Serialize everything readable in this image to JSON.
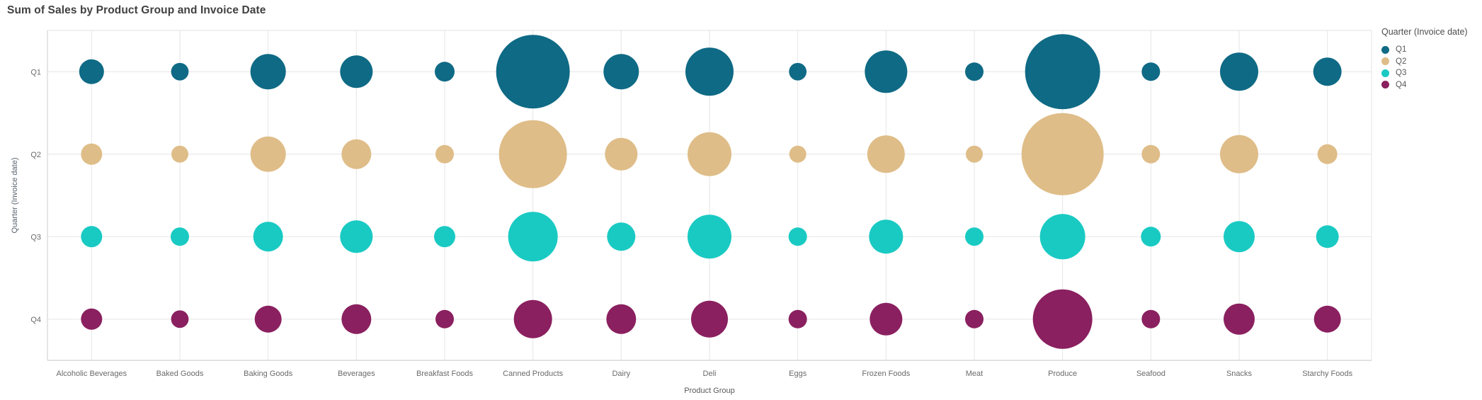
{
  "title": "Sum of Sales by Product Group and Invoice Date",
  "legend": {
    "title": "Quarter (Invoice date)",
    "items": [
      {
        "label": "Q1",
        "color": "#0f6a85"
      },
      {
        "label": "Q2",
        "color": "#dfbd88"
      },
      {
        "label": "Q3",
        "color": "#19cac3"
      },
      {
        "label": "Q4",
        "color": "#8a205f"
      }
    ]
  },
  "chart_data": {
    "type": "scatter",
    "subtype": "bubble",
    "title": "Sum of Sales by Product Group and Invoice Date",
    "xlabel": "Product Group",
    "ylabel": "Quarter (Invoice date)",
    "size_encoding": "Sum of Sales (relative, largest bubble = 100)",
    "grid": true,
    "legend_position": "right",
    "categories": [
      "Alcoholic Beverages",
      "Baked Goods",
      "Baking Goods",
      "Beverages",
      "Breakfast Foods",
      "Canned Products",
      "Dairy",
      "Deli",
      "Eggs",
      "Frozen Foods",
      "Meat",
      "Produce",
      "Seafood",
      "Snacks",
      "Starchy Foods"
    ],
    "y_categories": [
      "Q1",
      "Q2",
      "Q3",
      "Q4"
    ],
    "series": [
      {
        "name": "Q1",
        "color": "#0f6a85",
        "values": [
          9.1,
          4.6,
          18.6,
          15.7,
          5.8,
          80.4,
          18.6,
          34.4,
          4.6,
          26.8,
          5.0,
          83.5,
          5.0,
          21.7,
          11.9
        ]
      },
      {
        "name": "Q2",
        "color": "#dfbd88",
        "values": [
          6.7,
          4.3,
          18.6,
          13.1,
          5.0,
          68.5,
          15.7,
          28.6,
          4.3,
          20.9,
          4.3,
          100.0,
          5.0,
          21.7,
          5.8
        ]
      },
      {
        "name": "Q3",
        "color": "#19cac3",
        "values": [
          6.7,
          5.0,
          13.1,
          15.7,
          6.7,
          36.4,
          11.9,
          28.6,
          5.0,
          17.1,
          5.0,
          30.4,
          5.8,
          14.4,
          7.6
        ]
      },
      {
        "name": "Q4",
        "color": "#8a205f",
        "values": [
          6.7,
          4.6,
          10.7,
          13.1,
          5.0,
          21.7,
          13.1,
          20.1,
          5.0,
          15.7,
          5.0,
          52.4,
          5.0,
          14.4,
          10.7
        ]
      }
    ]
  }
}
